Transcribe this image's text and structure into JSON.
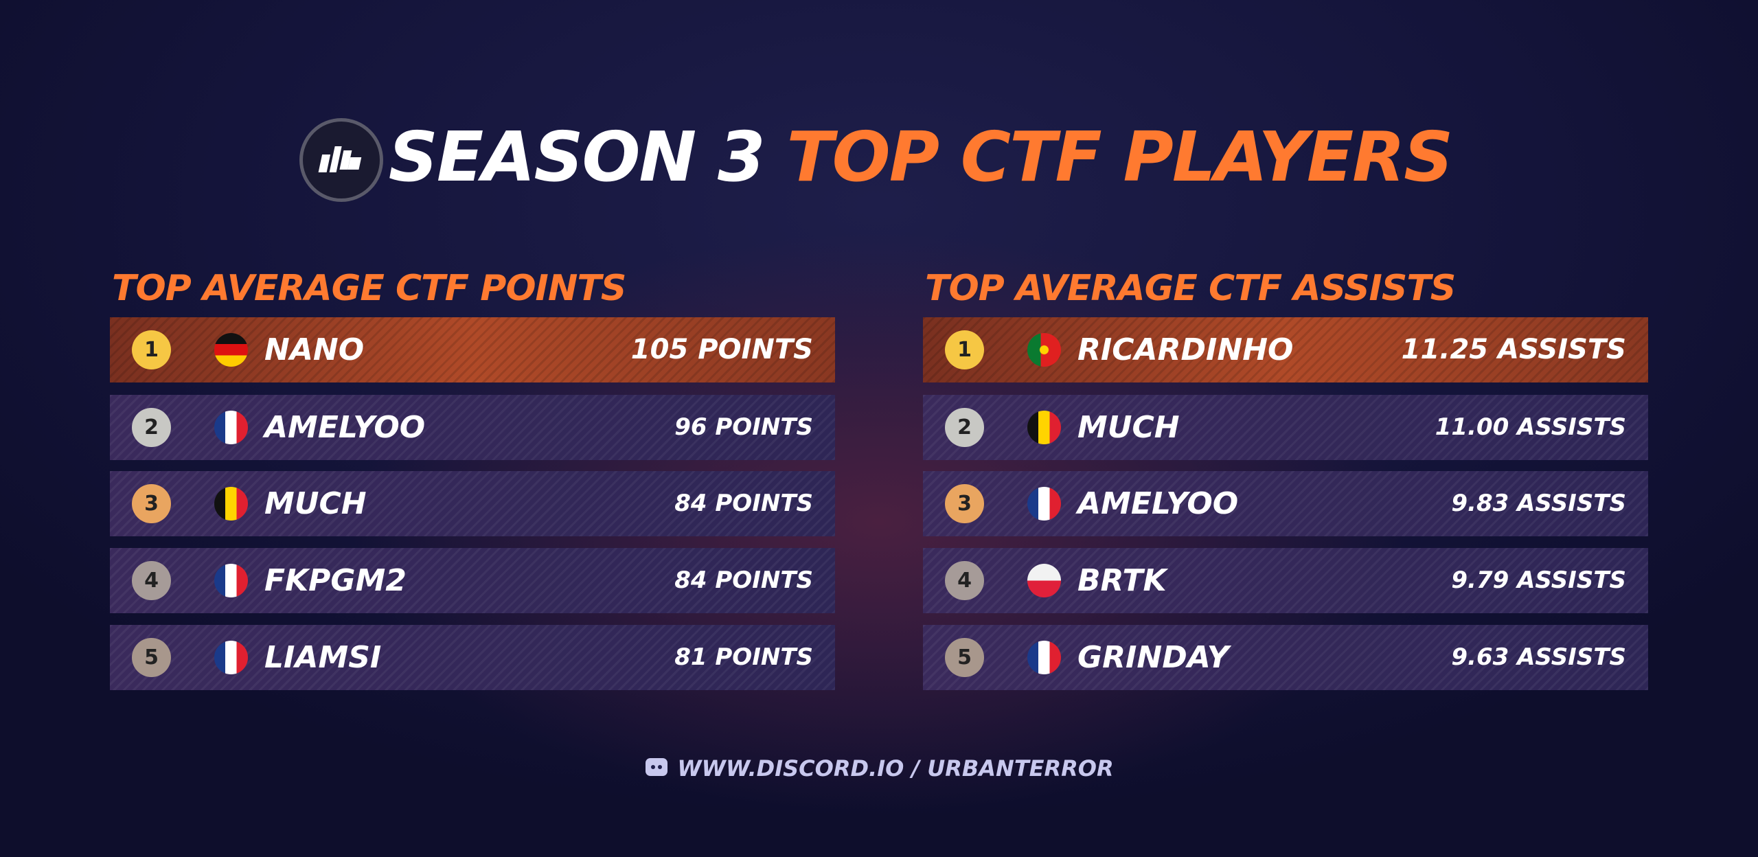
{
  "header": {
    "title_white": "SEASON 3",
    "title_orange": "TOP CTF PLAYERS"
  },
  "tables": [
    {
      "title": "TOP AVERAGE CTF POINTS",
      "rows": [
        {
          "rank": 1,
          "name": "NANO",
          "value": "105 POINTS"
        },
        {
          "rank": 2,
          "name": "AMELYOO",
          "value": "96 POINTS"
        },
        {
          "rank": 3,
          "name": "MUCH",
          "value": "84 POINTS"
        },
        {
          "rank": 4,
          "name": "FKPGM2",
          "value": "84 POINTS"
        },
        {
          "rank": 5,
          "name": "LIAMSI",
          "value": "81 POINTS"
        }
      ]
    },
    {
      "title": "TOP AVERAGE CTF ASSISTS",
      "rows": [
        {
          "rank": 1,
          "name": "RICARDINHO",
          "value": "11.25 ASSISTS"
        },
        {
          "rank": 2,
          "name": "MUCH",
          "value": "11.00 ASSISTS"
        },
        {
          "rank": 3,
          "name": "AMELYOO",
          "value": "9.83 ASSISTS"
        },
        {
          "rank": 4,
          "name": "BRTK",
          "value": "9.79 ASSISTS"
        },
        {
          "rank": 5,
          "name": "GRINDAY",
          "value": "9.63 ASSISTS"
        }
      ]
    }
  ],
  "footer": {
    "link": "WWW.DISCORD.IO / URBANTERROR"
  }
}
